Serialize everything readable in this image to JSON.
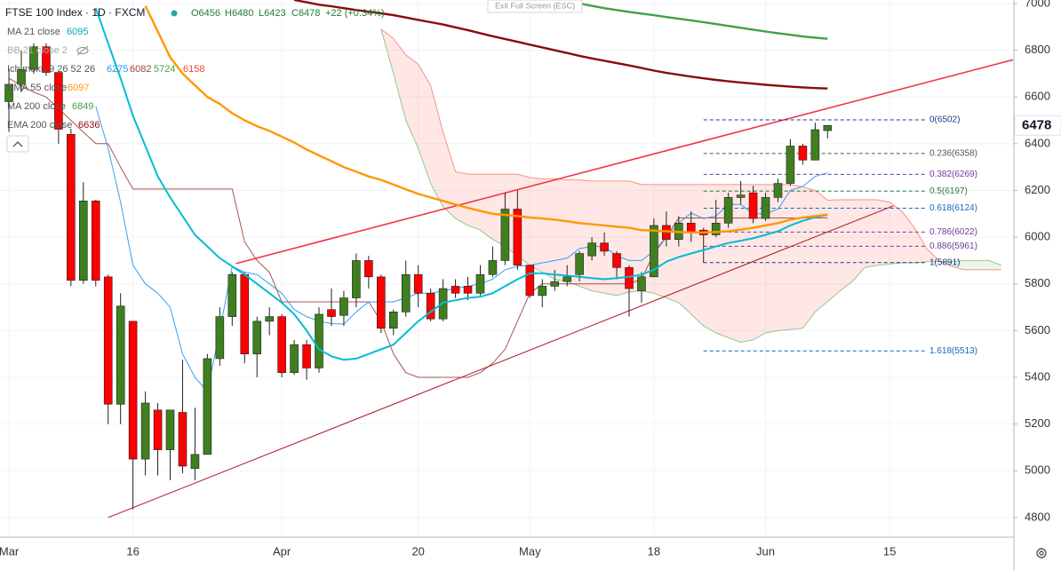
{
  "chart_data": {
    "type": "candlestick",
    "title": "FTSE 100 Index · 1D · FXCM",
    "legend_ohlc": [
      "O6456",
      "H6480",
      "L6423",
      "C6478",
      "+22 (+0.34%)"
    ],
    "ui_button": "Exit Full Screen (ESC)",
    "hidden_indicators": [
      "BB 21 close 2"
    ],
    "categories": [
      "Mar",
      null,
      null,
      null,
      null,
      null,
      null,
      null,
      null,
      null,
      "16",
      null,
      null,
      null,
      null,
      null,
      null,
      null,
      null,
      null,
      null,
      null,
      "Apr",
      null,
      null,
      null,
      null,
      null,
      null,
      null,
      null,
      null,
      null,
      "20",
      null,
      null,
      null,
      null,
      null,
      null,
      null,
      null,
      "May",
      null,
      null,
      null,
      null,
      null,
      null,
      null,
      null,
      null,
      "18",
      null,
      null,
      null,
      null,
      null,
      null,
      null,
      null,
      "Jun",
      null,
      null,
      null,
      null,
      null,
      null,
      null,
      null,
      null,
      "15",
      null,
      null,
      null,
      null,
      null,
      null,
      null,
      null,
      null
    ],
    "candles": {
      "open": [
        6580,
        6654,
        6718,
        6815,
        6705,
        6440,
        5815,
        6155,
        5830,
        5285,
        5640,
        5050,
        5260,
        5090,
        5250,
        5010,
        5070,
        5480,
        5660,
        5840,
        5500,
        5640,
        5660,
        5420,
        5540,
        5440,
        5690,
        5665,
        5740,
        5900,
        5830,
        5610,
        5680,
        5840,
        5760,
        5650,
        5790,
        5790,
        5760,
        5840,
        5900,
        6120,
        5880,
        5750,
        5790,
        5810,
        5840,
        5920,
        5975,
        5930,
        5870,
        5770,
        5830,
        6050,
        5990,
        6060,
        6030,
        6010,
        6060,
        6170,
        6190,
        6080,
        6170,
        6230,
        6390,
        6330,
        6456,
        null,
        null,
        null,
        null,
        null,
        null,
        null,
        null,
        null,
        null,
        null,
        null,
        null,
        null
      ],
      "high": [
        6720,
        6800,
        6830,
        6830,
        6705,
        6464,
        6235,
        6160,
        5840,
        5760,
        5640,
        5340,
        5290,
        5260,
        5475,
        5270,
        5500,
        5700,
        5850,
        5850,
        5660,
        5700,
        5670,
        5560,
        5560,
        5700,
        5780,
        5770,
        5930,
        5920,
        5840,
        5690,
        5900,
        5880,
        5780,
        5820,
        5820,
        5830,
        5880,
        5960,
        6190,
        6200,
        5880,
        5820,
        5860,
        5880,
        5940,
        6000,
        6020,
        5940,
        5880,
        5850,
        6080,
        6110,
        6090,
        6110,
        6040,
        6160,
        6190,
        6240,
        6220,
        6190,
        6250,
        6420,
        6400,
        6490,
        6480,
        null,
        null,
        null,
        null,
        null,
        null,
        null,
        null,
        null,
        null,
        null,
        null,
        null,
        null
      ],
      "low": [
        6450,
        6620,
        6700,
        6690,
        6400,
        5790,
        5800,
        5790,
        5200,
        5200,
        4835,
        4980,
        4980,
        4960,
        4990,
        4960,
        5070,
        5450,
        5620,
        5460,
        5400,
        5580,
        5400,
        5410,
        5390,
        5420,
        5620,
        5620,
        5700,
        5780,
        5590,
        5580,
        5660,
        5700,
        5640,
        5640,
        5740,
        5730,
        5750,
        5830,
        5880,
        5860,
        5740,
        5700,
        5770,
        5790,
        5810,
        5900,
        5920,
        5820,
        5660,
        5720,
        5830,
        5960,
        5960,
        5980,
        5890,
        6000,
        6040,
        6140,
        6060,
        6070,
        6150,
        6220,
        6310,
        6330,
        6423,
        null,
        null,
        null,
        null,
        null,
        null,
        null,
        null,
        null,
        null,
        null,
        null,
        null,
        null
      ],
      "close": [
        6654,
        6718,
        6815,
        6705,
        6462,
        5815,
        6155,
        5815,
        5285,
        5705,
        5050,
        5290,
        5090,
        5260,
        5020,
        5070,
        5480,
        5660,
        5840,
        5500,
        5640,
        5660,
        5420,
        5540,
        5440,
        5670,
        5660,
        5740,
        5900,
        5830,
        5610,
        5680,
        5840,
        5760,
        5650,
        5780,
        5760,
        5760,
        5840,
        5900,
        6120,
        5880,
        5750,
        5790,
        5810,
        5830,
        5930,
        5975,
        5940,
        5870,
        5780,
        5830,
        6050,
        5990,
        6060,
        6020,
        6010,
        6060,
        6170,
        6180,
        6080,
        6170,
        6230,
        6390,
        6330,
        6460,
        6478,
        null,
        null,
        null,
        null,
        null,
        null,
        null,
        null,
        null,
        null,
        null,
        null,
        null,
        null
      ],
      "up_color": "#3f7f1f",
      "down_color": "#ff0000"
    },
    "series": [
      {
        "name": "MA 21 close",
        "color": "#00bcd4",
        "values": [
          null,
          null,
          null,
          null,
          null,
          null,
          null,
          6980,
          6830,
          6680,
          6520,
          6390,
          6260,
          6170,
          6090,
          6010,
          5960,
          5910,
          5875,
          5840,
          5800,
          5760,
          5720,
          5670,
          5600,
          5520,
          5490,
          5475,
          5480,
          5500,
          5520,
          5540,
          5590,
          5640,
          5680,
          5720,
          5730,
          5740,
          5745,
          5760,
          5790,
          5820,
          5845,
          5845,
          5840,
          5835,
          5830,
          5825,
          5820,
          5825,
          5830,
          5840,
          5860,
          5895,
          5915,
          5930,
          5945,
          5960,
          5975,
          5985,
          5995,
          6010,
          6025,
          6050,
          6070,
          6085,
          6095,
          null,
          null,
          null,
          null,
          null,
          null,
          null,
          null,
          null,
          null,
          null,
          null,
          null,
          null
        ]
      },
      {
        "name": "EMA 55 close",
        "color": "#ff9800",
        "values": [
          null,
          null,
          null,
          null,
          null,
          null,
          null,
          null,
          null,
          null,
          null,
          6990,
          6880,
          6770,
          6700,
          6650,
          6600,
          6570,
          6530,
          6500,
          6475,
          6455,
          6430,
          6405,
          6375,
          6350,
          6325,
          6300,
          6280,
          6260,
          6245,
          6225,
          6205,
          6185,
          6170,
          6155,
          6140,
          6125,
          6112,
          6100,
          6095,
          6090,
          6084,
          6080,
          6075,
          6068,
          6060,
          6055,
          6050,
          6045,
          6040,
          6030,
          6028,
          6025,
          6022,
          6020,
          6020,
          6022,
          6025,
          6032,
          6040,
          6050,
          6060,
          6075,
          6084,
          6090,
          6097,
          null,
          null,
          null,
          null,
          null,
          null,
          null,
          null,
          null,
          null,
          null,
          null,
          null,
          null
        ]
      },
      {
        "name": "MA 200 close",
        "color": "#43a047",
        "values": [
          null,
          null,
          null,
          null,
          null,
          null,
          null,
          null,
          null,
          null,
          null,
          null,
          null,
          null,
          null,
          null,
          null,
          null,
          null,
          null,
          null,
          null,
          null,
          null,
          null,
          null,
          null,
          null,
          null,
          null,
          null,
          null,
          null,
          null,
          null,
          null,
          null,
          null,
          null,
          null,
          null,
          null,
          null,
          null,
          null,
          7010,
          7000,
          6990,
          6980,
          6972,
          6964,
          6957,
          6950,
          6942,
          6935,
          6928,
          6920,
          6912,
          6904,
          6896,
          6888,
          6880,
          6873,
          6866,
          6859,
          6854,
          6849,
          null,
          null,
          null,
          null,
          null,
          null,
          null,
          null,
          null,
          null,
          null,
          null,
          null,
          null
        ]
      },
      {
        "name": "EMA 200 close",
        "color": "#8b0a0a",
        "values": [
          null,
          null,
          null,
          null,
          null,
          null,
          null,
          null,
          null,
          null,
          null,
          null,
          null,
          null,
          null,
          null,
          null,
          null,
          null,
          null,
          null,
          null,
          null,
          7015,
          7005,
          6995,
          6988,
          6980,
          6972,
          6965,
          6958,
          6950,
          6940,
          6930,
          6920,
          6910,
          6898,
          6886,
          6873,
          6860,
          6848,
          6836,
          6824,
          6812,
          6800,
          6788,
          6776,
          6765,
          6755,
          6745,
          6735,
          6724,
          6713,
          6703,
          6695,
          6687,
          6680,
          6673,
          6667,
          6662,
          6657,
          6652,
          6648,
          6644,
          6641,
          6638,
          6636,
          null,
          null,
          null,
          null,
          null,
          null,
          null,
          null,
          null,
          null,
          null,
          null,
          null,
          null
        ]
      }
    ],
    "ichimoku": {
      "name": "Ichimoku 9 26 52 26",
      "conversion": {
        "color": "#2196f3",
        "values": [
          null,
          null,
          null,
          null,
          null,
          null,
          null,
          6560,
          6380,
          6150,
          5880,
          5800,
          5760,
          5700,
          5500,
          5400,
          5340,
          5600,
          5875,
          5850,
          5840,
          5800,
          5760,
          5690,
          5660,
          5640,
          5630,
          5628,
          5680,
          5723,
          5723,
          5723,
          5740,
          5760,
          5760,
          5770,
          5780,
          5790,
          5800,
          5820,
          5860,
          5875,
          5880,
          5890,
          5900,
          5910,
          5951,
          5960,
          5960,
          5920,
          5900,
          5900,
          5940,
          6000,
          6060,
          6103,
          6080,
          6090,
          6140,
          6140,
          6100,
          6100,
          6120,
          6200,
          6217,
          6260,
          6275,
          null,
          null,
          null,
          null,
          null,
          null,
          null,
          null,
          null,
          null,
          null,
          null,
          null,
          null
        ]
      },
      "base": {
        "color": "#a0413a",
        "values": [
          6680,
          6650,
          6620,
          6600,
          6550,
          6500,
          6450,
          6400,
          6400,
          6300,
          6206,
          6206,
          6206,
          6206,
          6206,
          6206,
          6206,
          6206,
          6206,
          5980,
          5900,
          5850,
          5723,
          5723,
          5723,
          5723,
          5723,
          5723,
          5723,
          5723,
          5640,
          5500,
          5420,
          5400,
          5400,
          5400,
          5400,
          5400,
          5420,
          5460,
          5520,
          5640,
          5760,
          5800,
          5800,
          5800,
          5800,
          5800,
          5800,
          5800,
          5800,
          5820,
          5930,
          6000,
          6082,
          6082,
          6082,
          6082,
          6082,
          6082,
          6082,
          6082,
          6082,
          6082,
          6082,
          6082,
          6082,
          null,
          null,
          null,
          null,
          null,
          null,
          null,
          null,
          null,
          null,
          null,
          null,
          null,
          null
        ]
      },
      "span_a": {
        "color": "#43a047",
        "values": [
          null,
          null,
          null,
          null,
          null,
          null,
          null,
          null,
          null,
          null,
          null,
          null,
          null,
          null,
          null,
          null,
          null,
          null,
          null,
          null,
          null,
          null,
          null,
          null,
          null,
          null,
          null,
          null,
          null,
          null,
          6890,
          6700,
          6500,
          6380,
          6230,
          6130,
          6080,
          6050,
          6030,
          5990,
          5960,
          5920,
          5880,
          5850,
          5820,
          5810,
          5790,
          5770,
          5760,
          5750,
          5765,
          5770,
          5760,
          5740,
          5720,
          5670,
          5620,
          5590,
          5570,
          5550,
          5560,
          5590,
          5600,
          5605,
          5610,
          5680,
          5724,
          5770,
          5810,
          5870,
          5880,
          5885,
          5890,
          5890,
          5895,
          5895,
          5895,
          5900,
          5900,
          5900,
          5880
        ]
      },
      "span_b": {
        "color": "#f44336",
        "values": [
          null,
          null,
          null,
          null,
          null,
          null,
          null,
          null,
          null,
          null,
          null,
          null,
          null,
          null,
          null,
          null,
          null,
          null,
          null,
          null,
          null,
          null,
          null,
          null,
          null,
          null,
          null,
          null,
          null,
          null,
          6890,
          6850,
          6780,
          6740,
          6650,
          6450,
          6280,
          6270,
          6270,
          6270,
          6270,
          6270,
          6255,
          6250,
          6250,
          6245,
          6245,
          6240,
          6240,
          6240,
          6240,
          6225,
          6225,
          6225,
          6225,
          6225,
          6225,
          6225,
          6225,
          6225,
          6225,
          6225,
          6225,
          6225,
          6215,
          6200,
          6158,
          6160,
          6160,
          6160,
          6160,
          6150,
          6110,
          6040,
          5950,
          5900,
          5875,
          5860,
          5860,
          5860,
          5860
        ]
      }
    },
    "fib_span": [
      56,
      74
    ],
    "fib_levels": [
      {
        "label": "0(6502)",
        "value": 6502,
        "color": "#1a3a8a"
      },
      {
        "label": "0.236(6358)",
        "value": 6358,
        "color": "#555555"
      },
      {
        "label": "0.382(6269)",
        "value": 6269,
        "color": "#6a3d9a"
      },
      {
        "label": "0.5(6197)",
        "value": 6197,
        "color": "#2e7d32"
      },
      {
        "label": "0.618(6124)",
        "value": 6124,
        "color": "#1565c0"
      },
      {
        "label": "0.786(6022)",
        "value": 6022,
        "color": "#6a3d9a"
      },
      {
        "label": "0.886(5961)",
        "value": 5961,
        "color": "#6a3d9a"
      },
      {
        "label": "1(5891)",
        "value": 5891,
        "color": "#1a3a8a"
      },
      {
        "label": "1.618(5513)",
        "value": 5513,
        "color": "#1565c0"
      }
    ],
    "trendlines": [
      {
        "color": "#f23645",
        "from": [
          18.3,
          5887
        ],
        "to": [
          81,
          6760
        ]
      },
      {
        "color": "#b22833",
        "from": [
          8,
          4800
        ],
        "to": [
          71.3,
          6134
        ]
      }
    ],
    "xlim": [
      -0.72,
      80.95
    ],
    "ylim": [
      4716,
      7015
    ],
    "yticks": [
      4800,
      5000,
      5200,
      5400,
      5600,
      5800,
      6000,
      6200,
      6400,
      6600,
      6800,
      7000
    ],
    "grid": true
  }
}
